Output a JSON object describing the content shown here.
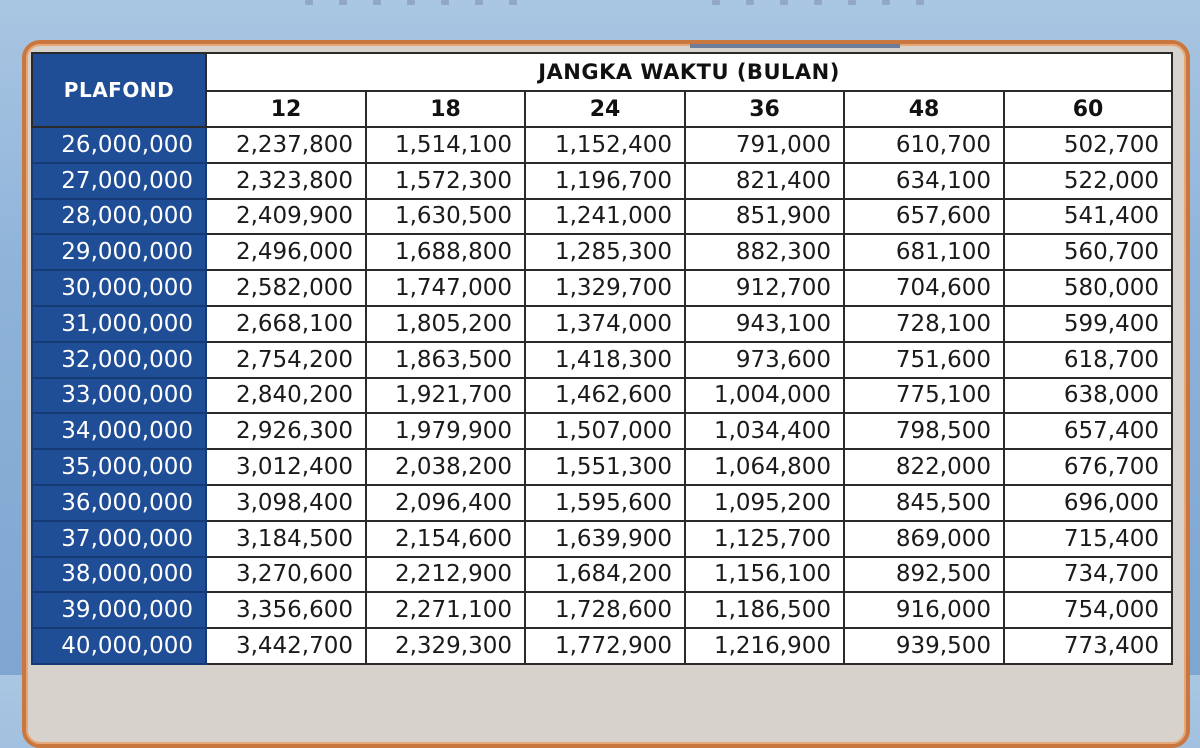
{
  "table": {
    "corner_label": "PLAFOND",
    "group_header": "JANGKA WAKTU (BULAN)",
    "terms": [
      "12",
      "18",
      "24",
      "36",
      "48",
      "60"
    ],
    "rows": [
      {
        "plafond": "26,000,000",
        "values": [
          "2,237,800",
          "1,514,100",
          "1,152,400",
          "791,000",
          "610,700",
          "502,700"
        ]
      },
      {
        "plafond": "27,000,000",
        "values": [
          "2,323,800",
          "1,572,300",
          "1,196,700",
          "821,400",
          "634,100",
          "522,000"
        ]
      },
      {
        "plafond": "28,000,000",
        "values": [
          "2,409,900",
          "1,630,500",
          "1,241,000",
          "851,900",
          "657,600",
          "541,400"
        ]
      },
      {
        "plafond": "29,000,000",
        "values": [
          "2,496,000",
          "1,688,800",
          "1,285,300",
          "882,300",
          "681,100",
          "560,700"
        ]
      },
      {
        "plafond": "30,000,000",
        "values": [
          "2,582,000",
          "1,747,000",
          "1,329,700",
          "912,700",
          "704,600",
          "580,000"
        ]
      },
      {
        "plafond": "31,000,000",
        "values": [
          "2,668,100",
          "1,805,200",
          "1,374,000",
          "943,100",
          "728,100",
          "599,400"
        ]
      },
      {
        "plafond": "32,000,000",
        "values": [
          "2,754,200",
          "1,863,500",
          "1,418,300",
          "973,600",
          "751,600",
          "618,700"
        ]
      },
      {
        "plafond": "33,000,000",
        "values": [
          "2,840,200",
          "1,921,700",
          "1,462,600",
          "1,004,000",
          "775,100",
          "638,000"
        ]
      },
      {
        "plafond": "34,000,000",
        "values": [
          "2,926,300",
          "1,979,900",
          "1,507,000",
          "1,034,400",
          "798,500",
          "657,400"
        ]
      },
      {
        "plafond": "35,000,000",
        "values": [
          "3,012,400",
          "2,038,200",
          "1,551,300",
          "1,064,800",
          "822,000",
          "676,700"
        ]
      },
      {
        "plafond": "36,000,000",
        "values": [
          "3,098,400",
          "2,096,400",
          "1,595,600",
          "1,095,200",
          "845,500",
          "696,000"
        ]
      },
      {
        "plafond": "37,000,000",
        "values": [
          "3,184,500",
          "2,154,600",
          "1,639,900",
          "1,125,700",
          "869,000",
          "715,400"
        ]
      },
      {
        "plafond": "38,000,000",
        "values": [
          "3,270,600",
          "2,212,900",
          "1,684,200",
          "1,156,100",
          "892,500",
          "734,700"
        ]
      },
      {
        "plafond": "39,000,000",
        "values": [
          "3,356,600",
          "2,271,100",
          "1,728,600",
          "1,186,500",
          "916,000",
          "754,000"
        ]
      },
      {
        "plafond": "40,000,000",
        "values": [
          "3,442,700",
          "2,329,300",
          "1,772,900",
          "1,216,900",
          "939,500",
          "773,400"
        ]
      }
    ]
  },
  "colors": {
    "plafond_bg": "#1f4d96",
    "frame_border": "#c9773e",
    "background": "#8fb3d9"
  }
}
